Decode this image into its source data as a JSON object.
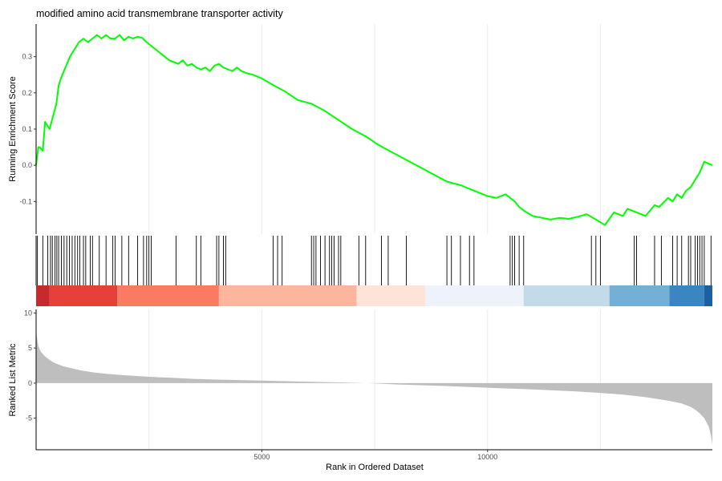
{
  "chart_data": {
    "type": "line",
    "title": "modified amino acid transmembrane transporter activity",
    "xlabel": "Rank in Ordered Dataset",
    "xlim": [
      1,
      14980
    ],
    "x_ticks": [
      5000,
      10000
    ],
    "x_tick_labels": [
      "5000",
      "10000"
    ],
    "grid": "vertical only",
    "panels": [
      {
        "name": "running-enrichment",
        "ylabel": "Running Enrichment Score",
        "ylim": [
          -0.19,
          0.39
        ],
        "y_ticks": [
          -0.1,
          0.0,
          0.1,
          0.2,
          0.3
        ],
        "y_tick_labels": [
          "-0.1",
          "0.0",
          "0.1",
          "0.2",
          "0.3"
        ],
        "line_color": "#00ff00",
        "series": [
          {
            "x": [
              0,
              50,
              80,
              150,
              200,
              300,
              450,
              500,
              550,
              650,
              750,
              850,
              950,
              1050,
              1150,
              1250,
              1350,
              1450,
              1550,
              1650,
              1750,
              1850,
              1950,
              2050,
              2150,
              2250,
              2350,
              2450,
              2550,
              2650,
              2750,
              2850,
              2950,
              3050,
              3150,
              3250,
              3350,
              3450,
              3550,
              3650,
              3750,
              3850,
              3950,
              4050,
              4150,
              4250,
              4350,
              4450,
              4550,
              4650,
              4800,
              5000,
              5200,
              5500,
              5800,
              6100,
              6400,
              6700,
              7000,
              7300,
              7600,
              7900,
              8200,
              8500,
              8800,
              9100,
              9400,
              9700,
              10000,
              10200,
              10400,
              10600,
              10700,
              10800,
              11000,
              11200,
              11400,
              11600,
              11800,
              12000,
              12200,
              12400,
              12600,
              12800,
              13000,
              13100,
              13300,
              13500,
              13700,
              13800,
              14000,
              14100,
              14200,
              14300,
              14400,
              14500,
              14600,
              14700,
              14800,
              14980
            ],
            "y": [
              0.0,
              0.05,
              0.05,
              0.04,
              0.12,
              0.1,
              0.17,
              0.22,
              0.24,
              0.27,
              0.3,
              0.32,
              0.34,
              0.35,
              0.34,
              0.35,
              0.36,
              0.35,
              0.36,
              0.35,
              0.35,
              0.36,
              0.345,
              0.355,
              0.35,
              0.355,
              0.352,
              0.34,
              0.33,
              0.32,
              0.31,
              0.3,
              0.29,
              0.285,
              0.28,
              0.29,
              0.275,
              0.28,
              0.27,
              0.265,
              0.27,
              0.26,
              0.275,
              0.28,
              0.27,
              0.265,
              0.26,
              0.27,
              0.26,
              0.255,
              0.25,
              0.24,
              0.225,
              0.205,
              0.18,
              0.17,
              0.15,
              0.125,
              0.1,
              0.08,
              0.055,
              0.035,
              0.015,
              -0.005,
              -0.025,
              -0.045,
              -0.055,
              -0.07,
              -0.085,
              -0.09,
              -0.08,
              -0.1,
              -0.115,
              -0.125,
              -0.14,
              -0.145,
              -0.15,
              -0.145,
              -0.148,
              -0.142,
              -0.135,
              -0.15,
              -0.165,
              -0.13,
              -0.14,
              -0.12,
              -0.13,
              -0.14,
              -0.11,
              -0.115,
              -0.09,
              -0.1,
              -0.08,
              -0.09,
              -0.07,
              -0.06,
              -0.04,
              -0.02,
              0.01,
              0.0
            ]
          }
        ]
      },
      {
        "name": "gene-hits",
        "hit_positions": [
          30,
          150,
          260,
          320,
          360,
          420,
          460,
          500,
          560,
          620,
          680,
          740,
          800,
          860,
          920,
          970,
          1050,
          1100,
          1200,
          1250,
          1400,
          1550,
          1700,
          1750,
          1900,
          2050,
          2250,
          2380,
          2450,
          2500,
          2550,
          3100,
          3550,
          3650,
          4000,
          4050,
          4150,
          4200,
          5250,
          5350,
          5450,
          6100,
          6150,
          6200,
          6300,
          6400,
          6500,
          6550,
          6600,
          6700,
          6750,
          7150,
          7300,
          7650,
          7800,
          8200,
          9100,
          9200,
          9400,
          9600,
          9700,
          10500,
          10550,
          10600,
          10700,
          10800,
          12300,
          12400,
          12500,
          13250,
          13300,
          13700,
          13850,
          14100,
          14200,
          14300,
          14450,
          14500,
          14600,
          14650,
          14700,
          14750,
          14800,
          14950
        ]
      },
      {
        "name": "rank-color-bar",
        "bands": [
          {
            "x0": 0,
            "x1": 300,
            "color": "#c8292c"
          },
          {
            "x0": 300,
            "x1": 1800,
            "color": "#e7403b"
          },
          {
            "x0": 1800,
            "x1": 4050,
            "color": "#fb7a62"
          },
          {
            "x0": 4050,
            "x1": 7100,
            "color": "#fcb69e"
          },
          {
            "x0": 7100,
            "x1": 8620,
            "color": "#fee4d8"
          },
          {
            "x0": 8620,
            "x1": 10800,
            "color": "#edf2fb"
          },
          {
            "x0": 10800,
            "x1": 12700,
            "color": "#c3dbe8"
          },
          {
            "x0": 12700,
            "x1": 14030,
            "color": "#74b0d6"
          },
          {
            "x0": 14030,
            "x1": 14800,
            "color": "#3a86c0"
          },
          {
            "x0": 14800,
            "x1": 14980,
            "color": "#1c5fa4"
          }
        ]
      },
      {
        "name": "ranked-list-metric",
        "ylabel": "Ranked List Metric",
        "ylim": [
          -9.5,
          10.5
        ],
        "y_ticks": [
          -5,
          0,
          5,
          10
        ],
        "y_tick_labels": [
          "-5",
          "0",
          "5",
          "10"
        ],
        "fill_color": "#bebebe",
        "series": [
          {
            "x": [
              0,
              20,
              50,
              100,
              200,
              300,
              400,
              600,
              800,
              1000,
              1300,
              1600,
              2000,
              2500,
              3000,
              3500,
              4000,
              5000,
              6000,
              7000,
              7300,
              7500,
              8000,
              9000,
              10000,
              11000,
              12000,
              12500,
              13000,
              13500,
              14000,
              14300,
              14500,
              14600,
              14700,
              14800,
              14900,
              14950,
              14980
            ],
            "y": [
              7.5,
              6.5,
              5.3,
              4.5,
              3.8,
              3.3,
              2.9,
              2.4,
              2.1,
              1.8,
              1.5,
              1.3,
              1.1,
              0.9,
              0.75,
              0.6,
              0.5,
              0.35,
              0.2,
              0.05,
              0.0,
              -0.05,
              -0.2,
              -0.4,
              -0.65,
              -0.9,
              -1.2,
              -1.4,
              -1.65,
              -2.0,
              -2.5,
              -2.9,
              -3.4,
              -3.8,
              -4.3,
              -5.0,
              -6.2,
              -7.5,
              -8.8
            ]
          }
        ]
      }
    ]
  }
}
